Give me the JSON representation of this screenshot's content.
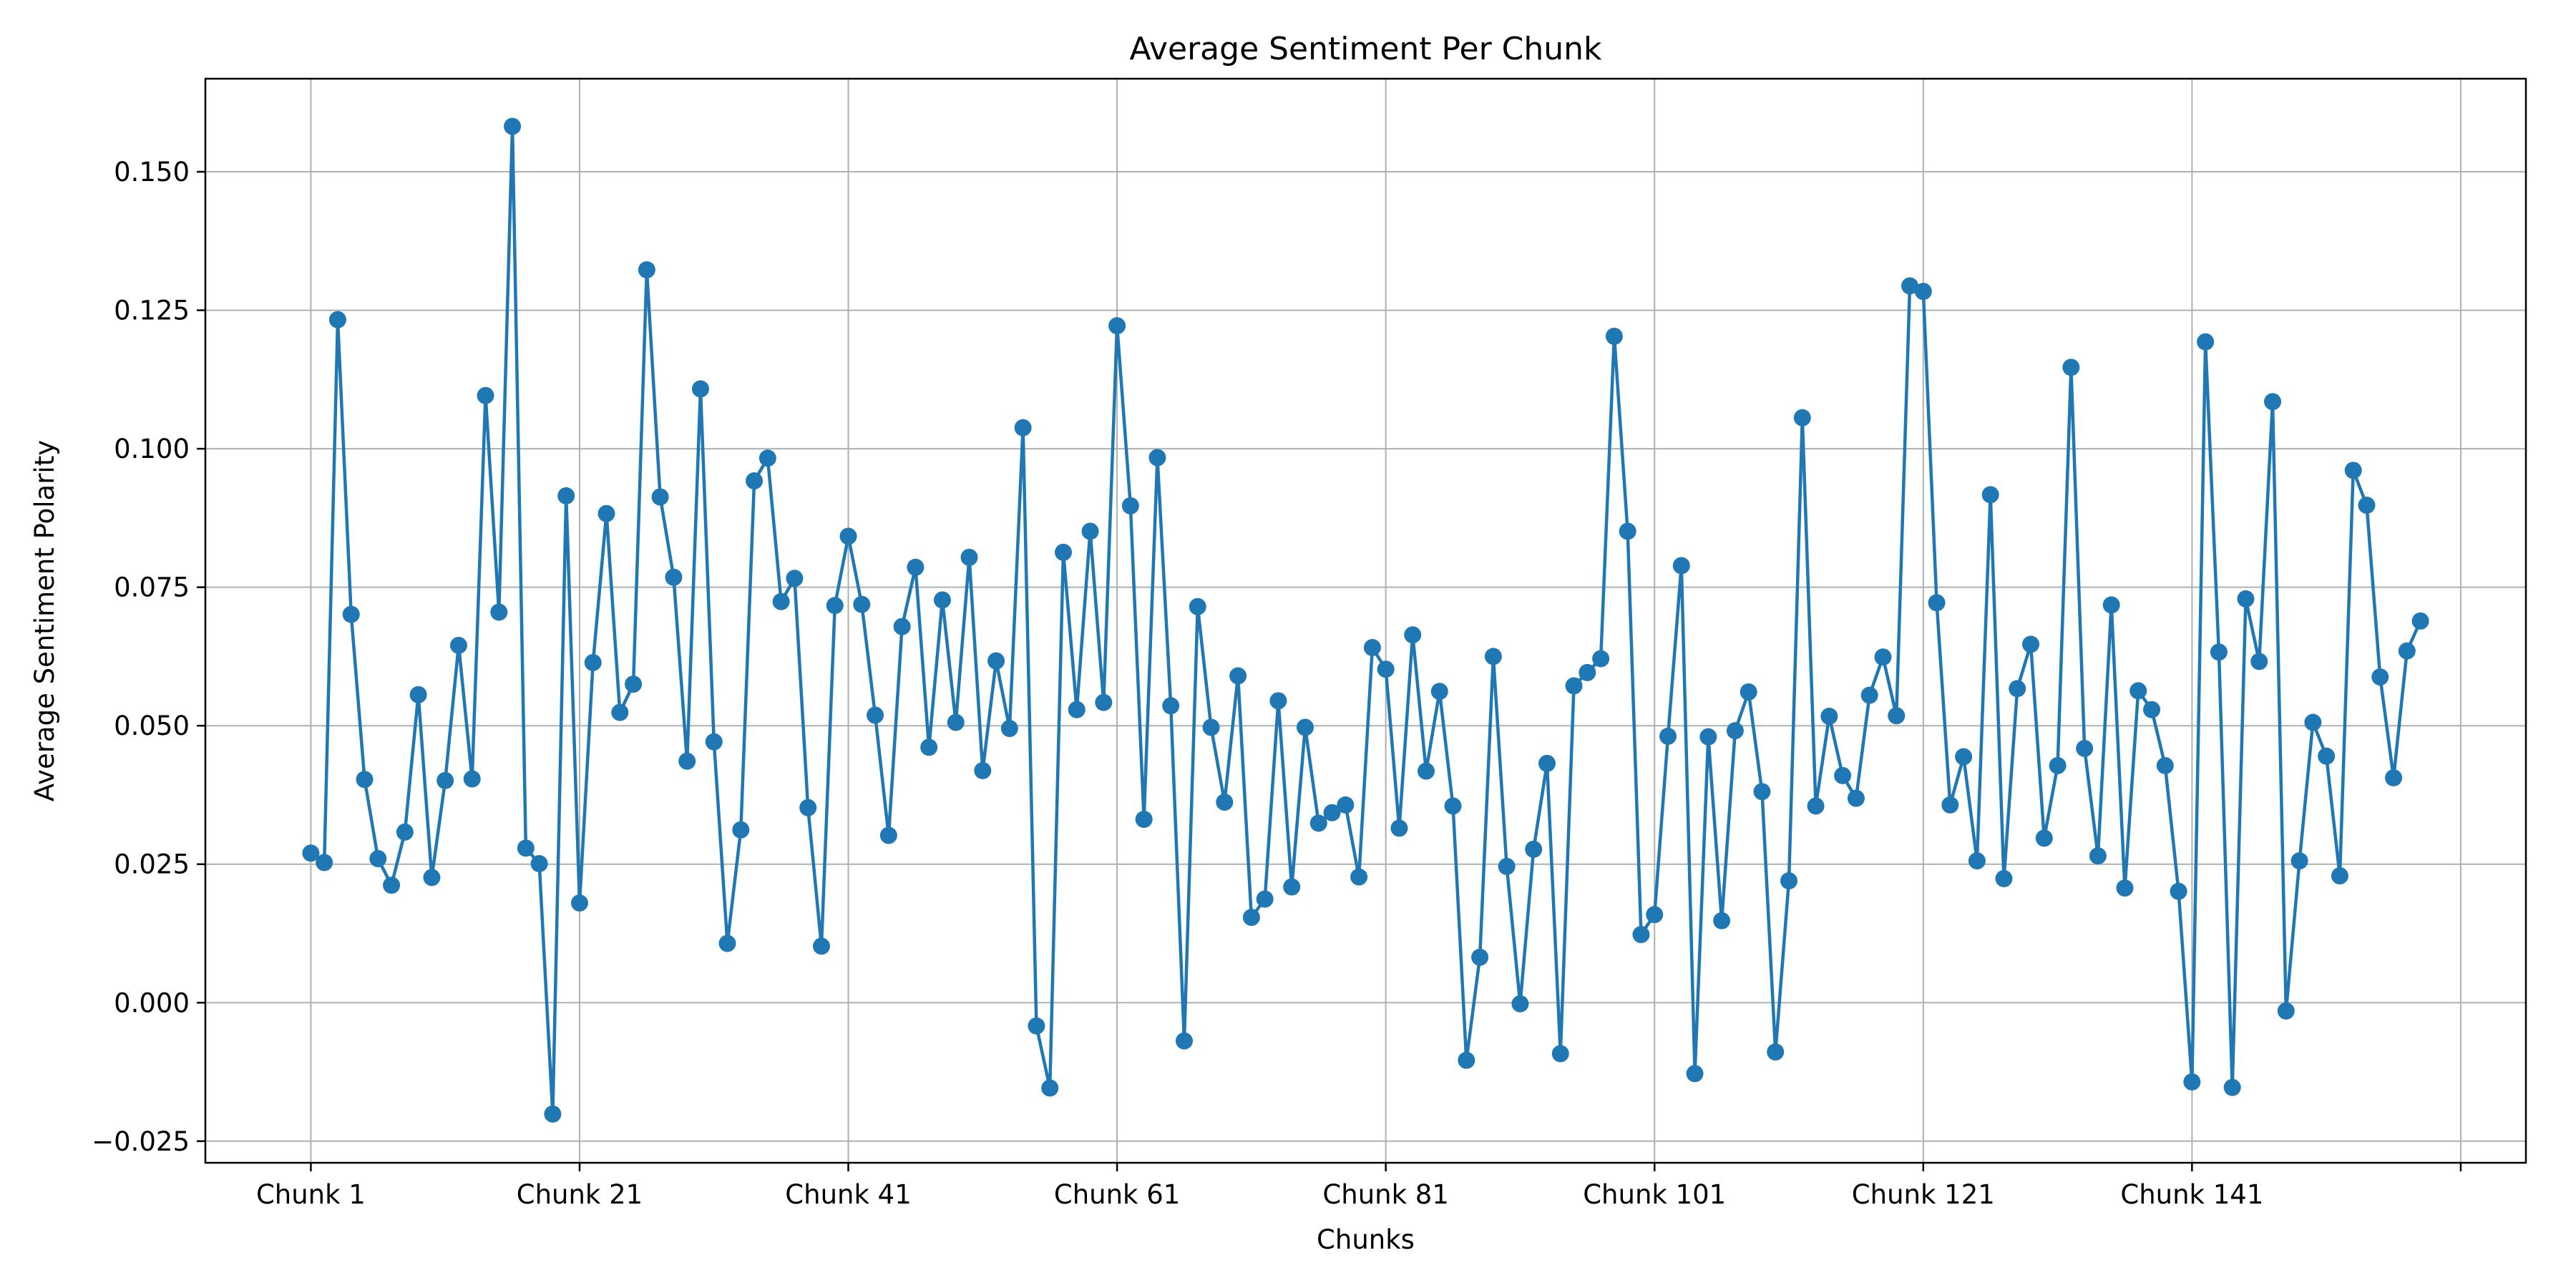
{
  "chart_data": {
    "type": "line",
    "title": "Average Sentiment Per Chunk",
    "xlabel": "Chunks",
    "ylabel": "Average Sentiment Polarity",
    "x_tick_labels": [
      "Chunk 1",
      "Chunk 21",
      "Chunk 41",
      "Chunk 61",
      "Chunk 81",
      "Chunk 101",
      "Chunk 121",
      "Chunk 141",
      ""
    ],
    "x_tick_positions": [
      1,
      21,
      41,
      61,
      81,
      101,
      121,
      141,
      161
    ],
    "y_ticks": [
      -0.025,
      0.0,
      0.025,
      0.05,
      0.075,
      0.1,
      0.125,
      0.15
    ],
    "y_tick_labels": [
      "−0.025",
      "0.000",
      "0.025",
      "0.050",
      "0.075",
      "0.100",
      "0.125",
      "0.150"
    ],
    "xlim": [
      -6.85,
      165.85
    ],
    "ylim": [
      -0.0289,
      0.1668
    ],
    "grid": true,
    "color": "#1f77b4",
    "series": [
      {
        "name": "",
        "x_start": 1,
        "values": [
          0.027,
          0.0253,
          0.1233,
          0.0701,
          0.0403,
          0.026,
          0.0212,
          0.0308,
          0.0556,
          0.0226,
          0.0401,
          0.0645,
          0.0404,
          0.1096,
          0.0705,
          0.1582,
          0.0279,
          0.0251,
          -0.0201,
          0.0915,
          0.018,
          0.0614,
          0.0883,
          0.0524,
          0.0575,
          0.1323,
          0.0913,
          0.0768,
          0.0436,
          0.1108,
          0.0471,
          0.0107,
          0.0312,
          0.0942,
          0.0983,
          0.0724,
          0.0766,
          0.0352,
          0.0102,
          0.0717,
          0.0842,
          0.0719,
          0.0519,
          0.0302,
          0.0679,
          0.0786,
          0.0461,
          0.0727,
          0.0506,
          0.0804,
          0.0419,
          0.0617,
          0.0495,
          0.1038,
          -0.0042,
          -0.0154,
          0.0813,
          0.0529,
          0.0851,
          0.0542,
          0.1222,
          0.0897,
          0.0331,
          0.0984,
          0.0536,
          -0.0069,
          0.0715,
          0.0497,
          0.0362,
          0.059,
          0.0154,
          0.0187,
          0.0545,
          0.0209,
          0.0497,
          0.0324,
          0.0343,
          0.0357,
          0.0227,
          0.0641,
          0.0602,
          0.0315,
          0.0664,
          0.0418,
          0.0562,
          0.0355,
          -0.0104,
          0.0082,
          0.0625,
          0.0246,
          -0.0002,
          0.0277,
          0.0432,
          -0.0092,
          0.0572,
          0.0596,
          0.0621,
          0.1203,
          0.0851,
          0.0123,
          0.0159,
          0.0481,
          0.0789,
          -0.0128,
          0.048,
          0.0148,
          0.0491,
          0.0561,
          0.0381,
          -0.0089,
          0.022,
          0.1056,
          0.0355,
          0.0517,
          0.041,
          0.0369,
          0.0555,
          0.0624,
          0.0518,
          0.1294,
          0.1284,
          0.0722,
          0.0357,
          0.0444,
          0.0256,
          0.0917,
          0.0224,
          0.0567,
          0.0647,
          0.0297,
          0.0428,
          0.1147,
          0.0459,
          0.0265,
          0.0718,
          0.0207,
          0.0563,
          0.0529,
          0.0428,
          0.0201,
          -0.0143,
          0.1193,
          0.0633,
          -0.0153,
          0.0729,
          0.0616,
          0.1085,
          -0.0015,
          0.0256,
          0.0506,
          0.0445,
          0.0229,
          0.0961,
          0.0898,
          0.0588,
          0.0406,
          0.0635,
          0.0689
        ]
      }
    ]
  }
}
